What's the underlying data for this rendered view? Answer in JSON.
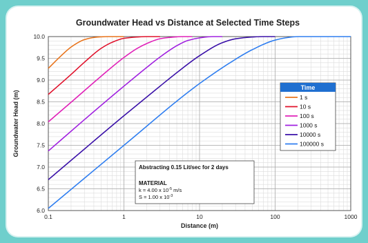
{
  "chart_data": {
    "type": "line",
    "title": "Groundwater Head vs Distance at Selected Time Steps",
    "xlabel": "Distance (m)",
    "ylabel": "Groundwater Head (m)",
    "x_scale": "log",
    "xlim": [
      0.1,
      1000
    ],
    "ylim": [
      6.0,
      10.0
    ],
    "x_ticks": [
      "0.1",
      "1",
      "10",
      "100",
      "1000"
    ],
    "y_ticks": [
      "6.0",
      "6.5",
      "7.0",
      "7.5",
      "8.0",
      "8.5",
      "9.0",
      "9.5",
      "10.0"
    ],
    "grid": true,
    "legend": {
      "title": "Time",
      "position": "right",
      "title_bg": "#1f6fd0"
    },
    "series": [
      {
        "name": "1 s",
        "color": "#e8741c",
        "x": [
          0.1,
          0.15,
          0.2,
          0.3,
          0.4,
          0.5,
          0.6,
          0.8,
          1.0
        ],
        "y": [
          9.27,
          9.57,
          9.76,
          9.93,
          9.98,
          9.995,
          10.0,
          10.0,
          10.0
        ]
      },
      {
        "name": "10 s",
        "color": "#e0102a",
        "x": [
          0.1,
          0.2,
          0.3,
          0.5,
          0.7,
          1.0,
          1.5,
          2.0,
          3.0
        ],
        "y": [
          8.67,
          9.13,
          9.41,
          9.73,
          9.87,
          9.96,
          9.99,
          10.0,
          10.0
        ]
      },
      {
        "name": "100 s",
        "color": "#e020b8",
        "x": [
          0.1,
          0.2,
          0.5,
          1.0,
          1.5,
          2.0,
          3.0,
          4.0,
          6.0,
          8.0
        ],
        "y": [
          8.04,
          8.49,
          9.09,
          9.52,
          9.73,
          9.84,
          9.95,
          9.98,
          10.0,
          10.0
        ]
      },
      {
        "name": "1000 s",
        "color": "#a020e0",
        "x": [
          0.1,
          0.3,
          1.0,
          2.0,
          3.0,
          5.0,
          7.0,
          10.0,
          15.0,
          20.0
        ],
        "y": [
          7.37,
          8.09,
          8.86,
          9.29,
          9.53,
          9.79,
          9.91,
          9.97,
          10.0,
          10.0
        ]
      },
      {
        "name": "10000 s",
        "color": "#3a10a8",
        "x": [
          0.1,
          1.0,
          3.0,
          5.0,
          10.0,
          20.0,
          30.0,
          50.0,
          70.0,
          100.0
        ],
        "y": [
          6.71,
          8.18,
          8.86,
          9.17,
          9.56,
          9.86,
          9.95,
          9.99,
          10.0,
          10.0
        ]
      },
      {
        "name": "100000 s",
        "color": "#2f7ef0",
        "x": [
          0.1,
          1.0,
          10.0,
          30.0,
          50.0,
          100.0,
          150.0,
          200.0,
          300.0,
          1000.0
        ],
        "y": [
          6.05,
          7.5,
          8.92,
          9.48,
          9.7,
          9.92,
          9.98,
          10.0,
          10.0,
          10.0
        ]
      }
    ],
    "annotation": {
      "line1": "Abstracting 0.15 Lit/sec for 2 days",
      "heading": "MATERIAL",
      "k_prefix": "k = 4.00 x 10",
      "k_exp": "-5",
      "k_unit": " m/s",
      "s_prefix": "S = 1.00 x 10",
      "s_exp": "-3"
    }
  }
}
